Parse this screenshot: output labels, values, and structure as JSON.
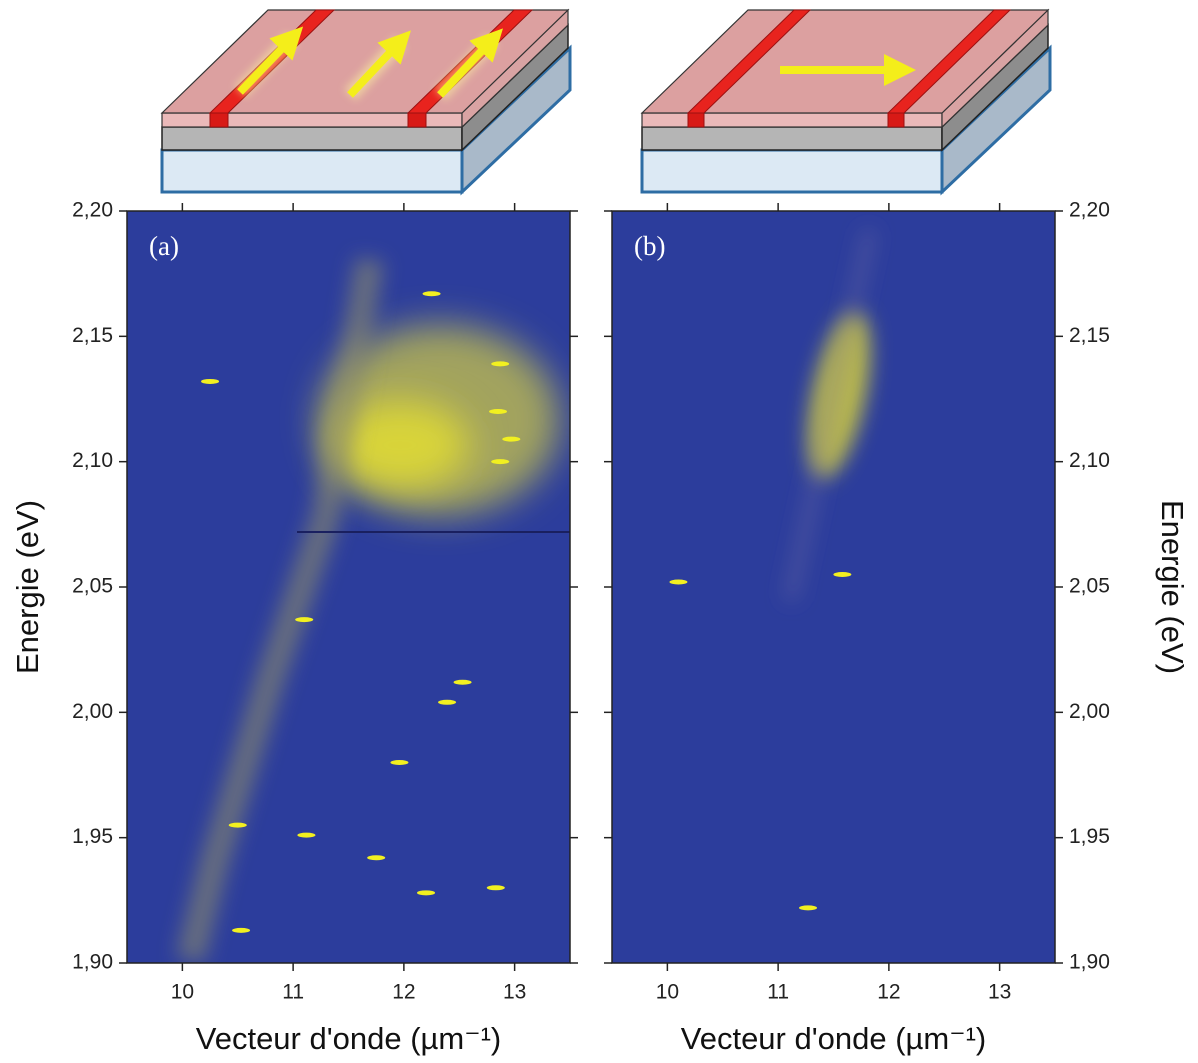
{
  "chart_data": [
    {
      "type": "heatmap",
      "label": "(a)",
      "xlabel": "Vecteur d'onde (µm⁻¹)",
      "ylabel": "Energie (eV)",
      "y_axis_side": "left",
      "xlim": [
        9.5,
        13.5
      ],
      "ylim": [
        1.9,
        2.2
      ],
      "xticks": [
        10,
        11,
        12,
        13
      ],
      "yticks": [
        {
          "value": 1.9,
          "label": "1,90"
        },
        {
          "value": 1.95,
          "label": "1,95"
        },
        {
          "value": 2.0,
          "label": "2,00"
        },
        {
          "value": 2.05,
          "label": "2,05"
        },
        {
          "value": 2.1,
          "label": "2,10"
        },
        {
          "value": 2.15,
          "label": "2,15"
        },
        {
          "value": 2.2,
          "label": "2,20"
        }
      ],
      "background": "#2c3d9c",
      "color": "#f2f020",
      "x": [
        10.25,
        12.25,
        12.87,
        12.85,
        12.97,
        12.87,
        11.1,
        12.53,
        12.39,
        11.96,
        10.5,
        11.12,
        11.75,
        12.2,
        12.83,
        10.53
      ],
      "y": [
        2.132,
        2.167,
        2.139,
        2.12,
        2.109,
        2.1,
        2.037,
        2.012,
        2.004,
        1.98,
        1.955,
        1.951,
        1.942,
        1.928,
        1.93,
        1.913
      ]
    },
    {
      "type": "heatmap",
      "label": "(b)",
      "xlabel": "Vecteur d'onde (µm⁻¹)",
      "ylabel": "Energie (eV)",
      "y_axis_side": "right",
      "xlim": [
        9.5,
        13.5
      ],
      "ylim": [
        1.9,
        2.2
      ],
      "xticks": [
        10,
        11,
        12,
        13
      ],
      "yticks": [
        {
          "value": 1.9,
          "label": "1,90"
        },
        {
          "value": 1.95,
          "label": "1,95"
        },
        {
          "value": 2.0,
          "label": "2,00"
        },
        {
          "value": 2.05,
          "label": "2,05"
        },
        {
          "value": 2.1,
          "label": "2,10"
        },
        {
          "value": 2.15,
          "label": "2,15"
        },
        {
          "value": 2.2,
          "label": "2,20"
        }
      ],
      "background": "#2c3d9c",
      "color": "#f2f020",
      "x": [
        10.1,
        11.58,
        11.27
      ],
      "y": [
        2.052,
        2.055,
        1.922
      ]
    }
  ]
}
